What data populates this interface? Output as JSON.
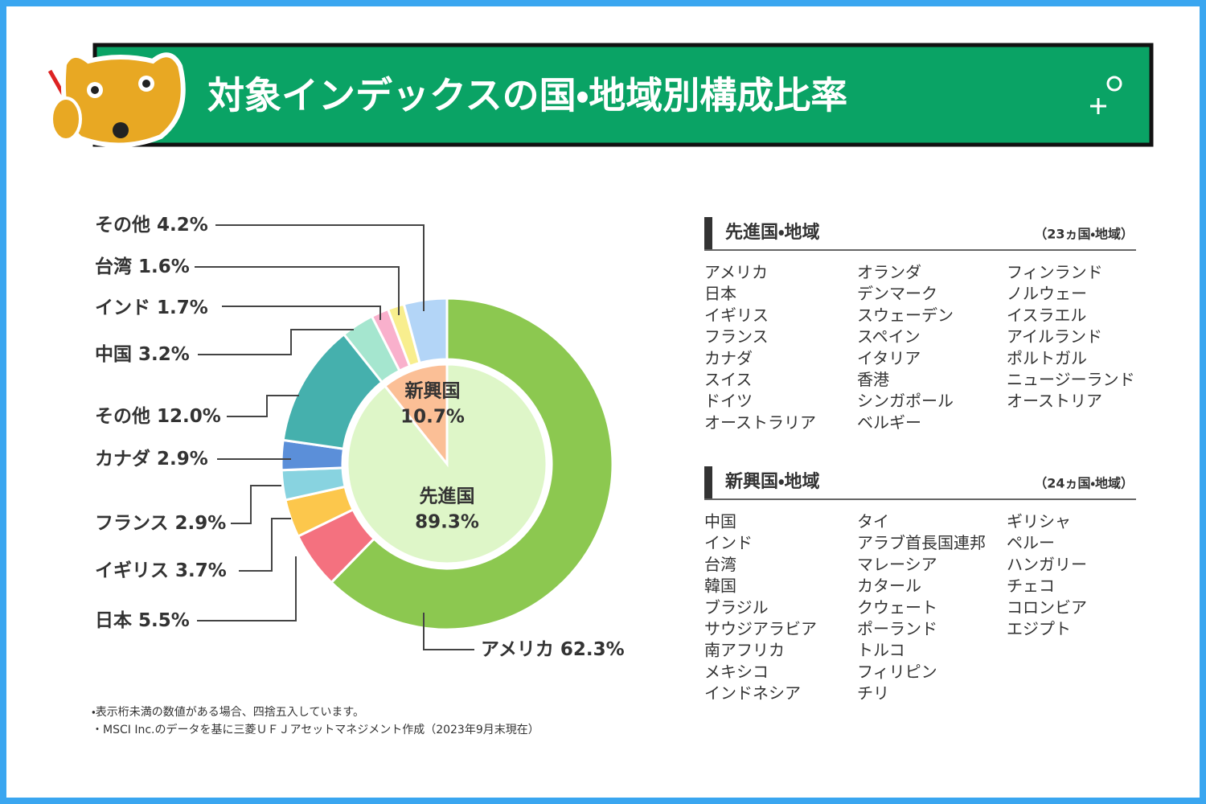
{
  "header": {
    "title": "対象インデックスの国・地域別構成比率"
  },
  "chart_data": {
    "type": "donut",
    "rings": [
      {
        "categories": [
          "アメリカ",
          "日本",
          "イギリス",
          "フランス",
          "カナダ",
          "その他",
          "中国",
          "インド",
          "台湾",
          "その他"
        ],
        "values": [
          62.3,
          5.5,
          3.7,
          2.9,
          2.9,
          12.0,
          3.2,
          1.7,
          1.6,
          4.2
        ],
        "value_labels": [
          "62.3%",
          "5.5%",
          "3.7%",
          "2.9%",
          "2.9%",
          "12.0%",
          "3.2%",
          "1.7%",
          "1.6%",
          "4.2%"
        ],
        "colors": [
          "#8cc850",
          "#f4717f",
          "#fcc74c",
          "#88d3e0",
          "#5b8fd9",
          "#45b0ad",
          "#a5e6cf",
          "#f9b0cc",
          "#f8ee8e",
          "#b3d5f7"
        ]
      },
      {
        "categories": [
          "先進国",
          "新興国"
        ],
        "values": [
          89.3,
          10.7
        ],
        "value_labels": [
          "89.3%",
          "10.7%"
        ],
        "colors": [
          "#def6c8",
          "#fbbf96"
        ]
      }
    ]
  },
  "lists": {
    "developed": {
      "title": "先進国・地域",
      "count": "（23ヵ国・地域）",
      "columns": [
        [
          "アメリカ",
          "日本",
          "イギリス",
          "フランス",
          "カナダ",
          "スイス",
          "ドイツ",
          "オーストラリア"
        ],
        [
          "オランダ",
          "デンマーク",
          "スウェーデン",
          "スペイン",
          "イタリア",
          "香港",
          "シンガポール",
          "ベルギー"
        ],
        [
          "フィンランド",
          "ノルウェー",
          "イスラエル",
          "アイルランド",
          "ポルトガル",
          "ニュージーランド",
          "オーストリア"
        ]
      ]
    },
    "emerging": {
      "title": "新興国・地域",
      "count": "（24ヵ国・地域）",
      "columns": [
        [
          "中国",
          "インド",
          "台湾",
          "韓国",
          "ブラジル",
          "サウジアラビア",
          "南アフリカ",
          "メキシコ",
          "インドネシア"
        ],
        [
          "タイ",
          "アラブ首長国連邦",
          "マレーシア",
          "カタール",
          "クウェート",
          "ポーランド",
          "トルコ",
          "フィリピン",
          "チリ"
        ],
        [
          "ギリシャ",
          "ペルー",
          "ハンガリー",
          "チェコ",
          "コロンビア",
          "エジプト"
        ]
      ]
    }
  },
  "notes": [
    "・表示桁未満の数値がある場合、四捨五入しています。",
    "・MSCI Inc.のデータを基に三菱ＵＦＪアセットマネジメント作成（2023年9月末現在）"
  ]
}
